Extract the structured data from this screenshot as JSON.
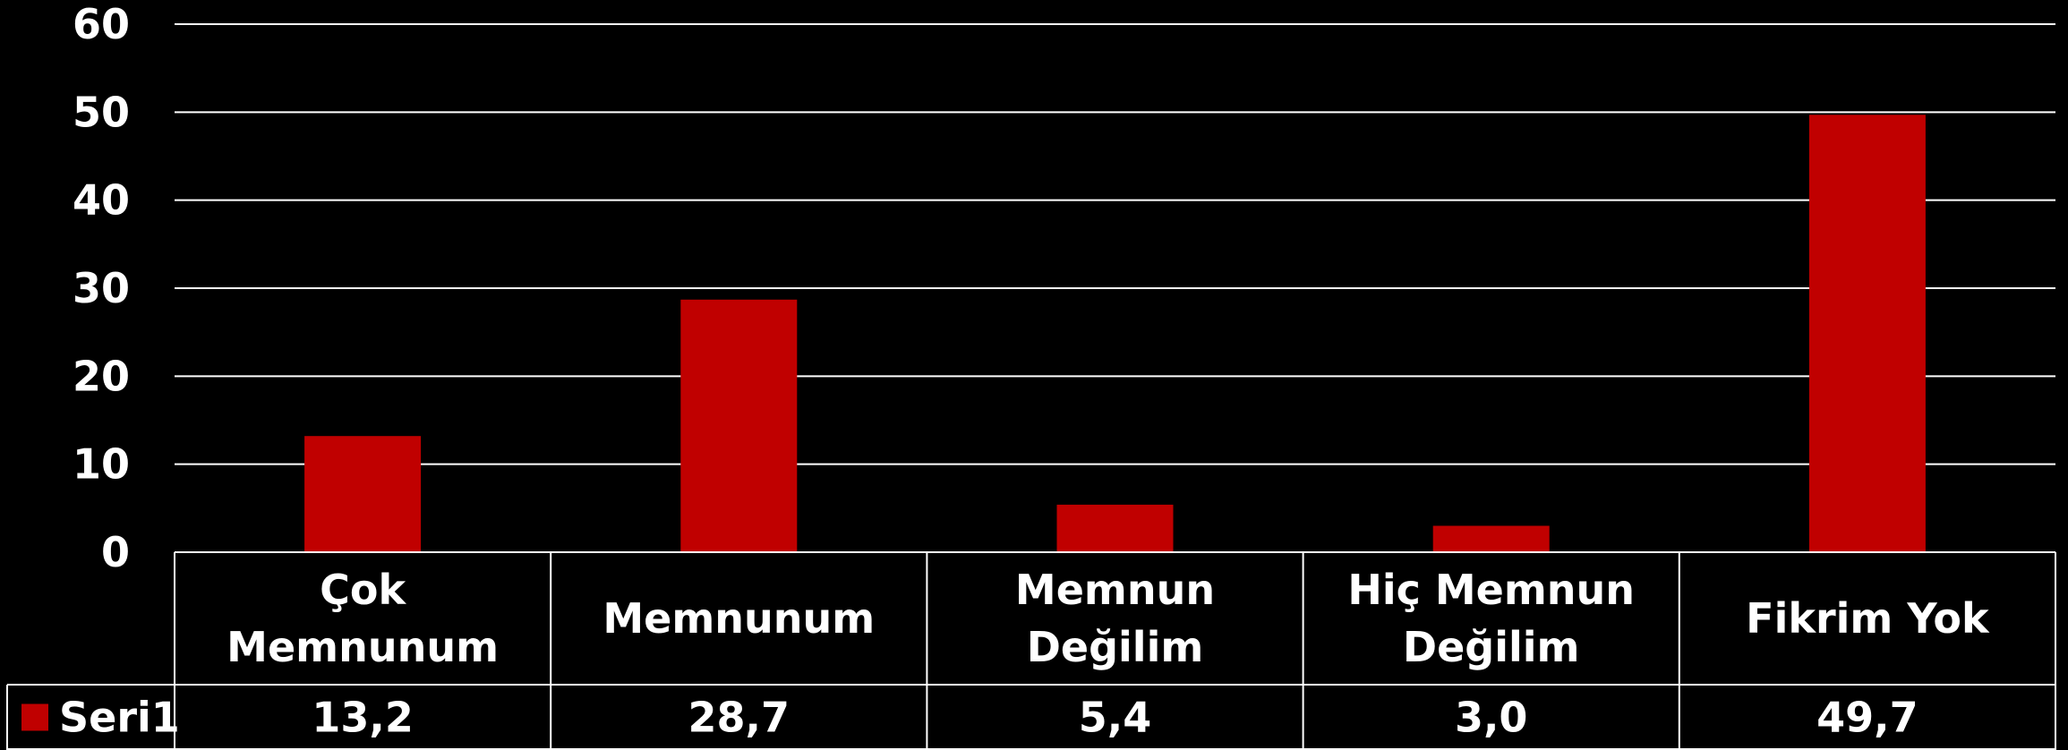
{
  "chart_data": {
    "type": "bar",
    "categories": [
      [
        "Çok",
        "Memnunum"
      ],
      [
        "Memnunum"
      ],
      [
        "Memnun",
        "Değilim"
      ],
      [
        "Hiç Memnun",
        "Değilim"
      ],
      [
        "Fikrim Yok"
      ]
    ],
    "series": [
      {
        "name": "Seri1",
        "values": [
          13.2,
          28.7,
          5.4,
          3.0,
          49.7
        ],
        "labels": [
          "13,2",
          "28,7",
          "5,4",
          "3,0",
          "49,7"
        ],
        "color": "#C00000"
      }
    ],
    "ylim": [
      0,
      60
    ],
    "yticks": [
      0,
      10,
      20,
      30,
      40,
      50,
      60
    ],
    "grid": true,
    "data_table": true,
    "colors": {
      "background": "#000000",
      "gridline": "#FFFFFF",
      "text": "#FFFFFF"
    }
  }
}
